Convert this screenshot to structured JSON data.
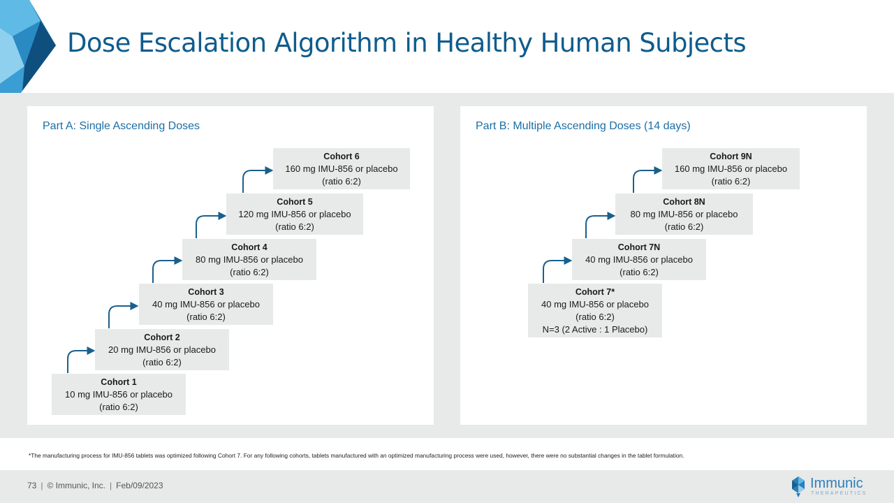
{
  "slide": {
    "title": "Dose Escalation Algorithm in Healthy Human Subjects"
  },
  "part_a": {
    "title": "Part A: Single Ascending Doses",
    "cohorts": [
      {
        "name": "Cohort 1",
        "dose": "10 mg IMU-856 or placebo",
        "ratio": "(ratio 6:2)"
      },
      {
        "name": "Cohort 2",
        "dose": "20 mg IMU-856 or placebo",
        "ratio": "(ratio 6:2)"
      },
      {
        "name": "Cohort 3",
        "dose": "40 mg IMU-856 or placebo",
        "ratio": "(ratio 6:2)"
      },
      {
        "name": "Cohort 4",
        "dose": "80 mg IMU-856 or placebo",
        "ratio": "(ratio 6:2)"
      },
      {
        "name": "Cohort 5",
        "dose": "120 mg IMU-856 or placebo",
        "ratio": "(ratio 6:2)"
      },
      {
        "name": "Cohort 6",
        "dose": "160 mg IMU-856 or placebo",
        "ratio": "(ratio 6:2)"
      }
    ]
  },
  "part_b": {
    "title": "Part B: Multiple Ascending Doses (14 days)",
    "cohorts": [
      {
        "name": "Cohort 7*",
        "dose": "40 mg IMU-856 or placebo",
        "ratio": "(ratio 6:2)",
        "note": "N=3 (2 Active : 1 Placebo)"
      },
      {
        "name": "Cohort 7N",
        "dose": "40 mg IMU-856 or placebo",
        "ratio": "(ratio 6:2)"
      },
      {
        "name": "Cohort 8N",
        "dose": "80 mg IMU-856 or placebo",
        "ratio": "(ratio 6:2)"
      },
      {
        "name": "Cohort 9N",
        "dose": "160 mg IMU-856 or placebo",
        "ratio": "(ratio 6:2)"
      }
    ]
  },
  "footnote": "*The manufacturing process for IMU-856 tablets was optimized following Cohort 7. For any following cohorts, tablets manufactured with an optimized manufacturing process were used, however, there were no substantial changes in the tablet formulation.",
  "footer": {
    "page_number": "73",
    "company": "© Immunic, Inc.",
    "date": "Feb/09/2023",
    "separator": "|"
  },
  "logo": {
    "name": "Immunic",
    "subtitle": "THERAPEUTICS"
  },
  "colors": {
    "title": "#0f5c8c",
    "panel_title": "#1b6ea6",
    "arrow": "#1a5f8c",
    "box": "#e8e9e9"
  }
}
